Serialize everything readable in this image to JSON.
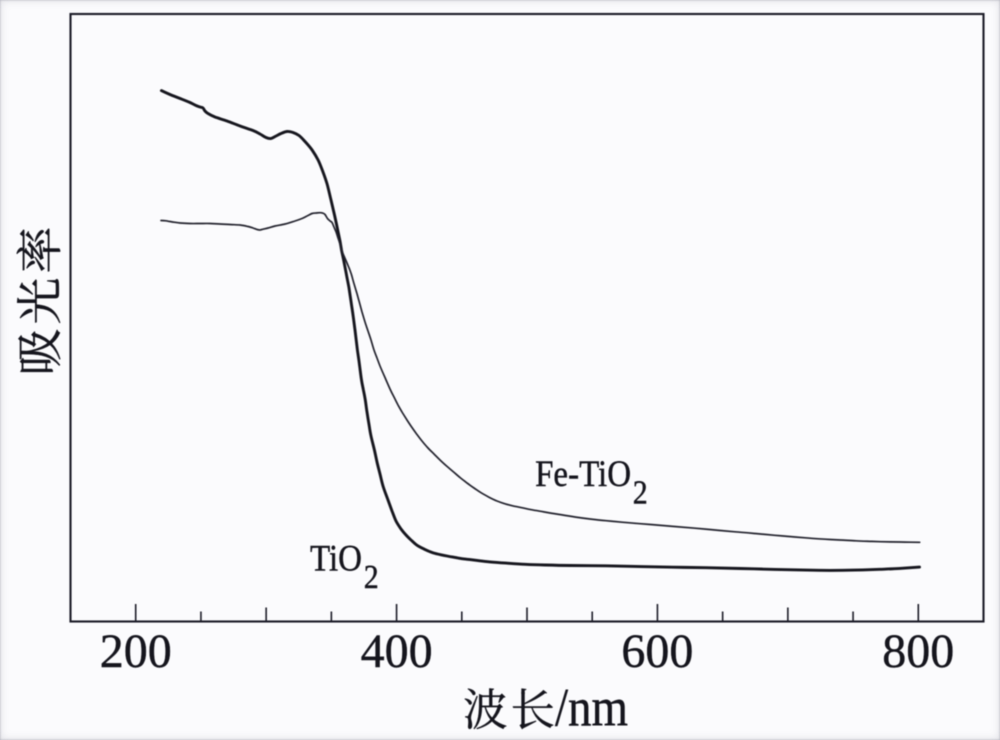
{
  "page": {
    "background": "#fbfbfd",
    "ink_color": "#15151d",
    "frame_color": "#1b1b27"
  },
  "chart_data": {
    "type": "line",
    "title": "",
    "xlabel": "波长/nm",
    "ylabel": "吸光率",
    "xlim": [
      150,
      850
    ],
    "ylim": [
      0,
      1
    ],
    "grid": false,
    "legend_position": "none",
    "x_ticks": [
      {
        "value": 200,
        "label": "200",
        "tier": "labeled"
      },
      {
        "value": 250,
        "label": "",
        "tier": "minor"
      },
      {
        "value": 300,
        "label": "",
        "tier": "major"
      },
      {
        "value": 350,
        "label": "",
        "tier": "minor"
      },
      {
        "value": 400,
        "label": "400",
        "tier": "labeled"
      },
      {
        "value": 450,
        "label": "",
        "tier": "minor"
      },
      {
        "value": 500,
        "label": "",
        "tier": "major"
      },
      {
        "value": 550,
        "label": "",
        "tier": "minor"
      },
      {
        "value": 600,
        "label": "600",
        "tier": "labeled"
      },
      {
        "value": 650,
        "label": "",
        "tier": "minor"
      },
      {
        "value": 700,
        "label": "",
        "tier": "major"
      },
      {
        "value": 750,
        "label": "",
        "tier": "minor"
      },
      {
        "value": 800,
        "label": "800",
        "tier": "labeled"
      }
    ],
    "series": [
      {
        "name": "TiO2",
        "label_main": "TiO",
        "label_sub": "2",
        "color": "#16161e",
        "stroke_width": 2.9,
        "label_anchor": {
          "x": 333.6,
          "y": 0.084
        },
        "points": [
          [
            219.7,
            0.8739
          ],
          [
            226.3,
            0.8675
          ],
          [
            234.0,
            0.8609
          ],
          [
            241.6,
            0.8543
          ],
          [
            246.2,
            0.8494
          ],
          [
            249.3,
            0.8469
          ],
          [
            251.6,
            0.8453
          ],
          [
            253.1,
            0.8403
          ],
          [
            255.4,
            0.8362
          ],
          [
            260.8,
            0.8305
          ],
          [
            270.0,
            0.8239
          ],
          [
            280.0,
            0.8156
          ],
          [
            289.9,
            0.8082
          ],
          [
            295.3,
            0.8025
          ],
          [
            299.9,
            0.7967
          ],
          [
            303.7,
            0.7951
          ],
          [
            307.6,
            0.7992
          ],
          [
            311.4,
            0.8033
          ],
          [
            316.0,
            0.8066
          ],
          [
            320.6,
            0.8049
          ],
          [
            325.2,
            0.8
          ],
          [
            329.8,
            0.7901
          ],
          [
            335.2,
            0.7761
          ],
          [
            339.8,
            0.7597
          ],
          [
            343.6,
            0.7399
          ],
          [
            346.7,
            0.7202
          ],
          [
            349.7,
            0.6938
          ],
          [
            352.4,
            0.6691
          ],
          [
            354.7,
            0.6461
          ],
          [
            356.6,
            0.6263
          ],
          [
            357.8,
            0.6115
          ],
          [
            359.7,
            0.5918
          ],
          [
            361.6,
            0.5704
          ],
          [
            363.5,
            0.549
          ],
          [
            365.1,
            0.5259
          ],
          [
            366.6,
            0.5045
          ],
          [
            368.1,
            0.4798
          ],
          [
            370.0,
            0.4469
          ],
          [
            371.6,
            0.4222
          ],
          [
            373.1,
            0.3975
          ],
          [
            374.6,
            0.3811
          ],
          [
            376.0,
            0.3646
          ],
          [
            377.3,
            0.3449
          ],
          [
            378.9,
            0.3235
          ],
          [
            380.4,
            0.3053
          ],
          [
            383.0,
            0.2823
          ],
          [
            385.0,
            0.2626
          ],
          [
            387.3,
            0.2428
          ],
          [
            389.6,
            0.223
          ],
          [
            393.4,
            0.2
          ],
          [
            396.5,
            0.1819
          ],
          [
            399.6,
            0.1654
          ],
          [
            403.4,
            0.1523
          ],
          [
            407.2,
            0.1424
          ],
          [
            411.1,
            0.1342
          ],
          [
            414.9,
            0.1267
          ],
          [
            418.0,
            0.1226
          ],
          [
            421.0,
            0.1193
          ],
          [
            424.9,
            0.1156
          ],
          [
            429.5,
            0.1121
          ],
          [
            434.1,
            0.1098
          ],
          [
            438.7,
            0.1078
          ],
          [
            443.3,
            0.106
          ],
          [
            447.1,
            0.1045
          ],
          [
            451.7,
            0.103
          ],
          [
            456.3,
            0.1019
          ],
          [
            462.4,
            0.1002
          ],
          [
            471.6,
            0.0981
          ],
          [
            483.9,
            0.0961
          ],
          [
            498.5,
            0.0942
          ],
          [
            513.8,
            0.093
          ],
          [
            533.0,
            0.0922
          ],
          [
            560.6,
            0.0917
          ],
          [
            586.6,
            0.0904
          ],
          [
            611.9,
            0.0894
          ],
          [
            637.2,
            0.0886
          ],
          [
            663.3,
            0.0872
          ],
          [
            690.1,
            0.0858
          ],
          [
            713.9,
            0.0846
          ],
          [
            732.3,
            0.0841
          ],
          [
            751.5,
            0.0846
          ],
          [
            770.6,
            0.0859
          ],
          [
            786.0,
            0.0874
          ],
          [
            800.9,
            0.0895
          ]
        ]
      },
      {
        "name": "Fe-TiO2",
        "label_main": "Fe-TiO",
        "label_sub": "2",
        "color": "#22222d",
        "stroke_width": 1.7,
        "label_anchor": {
          "x": 506.2,
          "y": 0.223
        },
        "points": [
          [
            219.4,
            0.6601
          ],
          [
            223.2,
            0.6596
          ],
          [
            226.3,
            0.6584
          ],
          [
            230.1,
            0.6571
          ],
          [
            234.0,
            0.656
          ],
          [
            241.6,
            0.6551
          ],
          [
            249.3,
            0.6551
          ],
          [
            257.0,
            0.6551
          ],
          [
            264.6,
            0.6543
          ],
          [
            272.3,
            0.6535
          ],
          [
            280.0,
            0.6527
          ],
          [
            286.1,
            0.6502
          ],
          [
            289.9,
            0.6477
          ],
          [
            293.0,
            0.6453
          ],
          [
            295.3,
            0.6444
          ],
          [
            296.8,
            0.6453
          ],
          [
            301.4,
            0.6477
          ],
          [
            306.8,
            0.651
          ],
          [
            314.5,
            0.6543
          ],
          [
            322.1,
            0.6593
          ],
          [
            327.5,
            0.6634
          ],
          [
            332.1,
            0.6683
          ],
          [
            335.2,
            0.6716
          ],
          [
            338.2,
            0.6724
          ],
          [
            341.3,
            0.6729
          ],
          [
            343.6,
            0.6721
          ],
          [
            345.1,
            0.67
          ],
          [
            347.0,
            0.6635
          ],
          [
            349.0,
            0.6593
          ],
          [
            350.5,
            0.6568
          ],
          [
            352.0,
            0.6494
          ],
          [
            353.6,
            0.6412
          ],
          [
            355.1,
            0.6313
          ],
          [
            356.6,
            0.6214
          ],
          [
            357.8,
            0.6115
          ],
          [
            359.7,
            0.6016
          ],
          [
            362.0,
            0.5901
          ],
          [
            363.9,
            0.5802
          ],
          [
            365.5,
            0.5704
          ],
          [
            367.4,
            0.5556
          ],
          [
            369.7,
            0.5391
          ],
          [
            371.4,
            0.5259
          ],
          [
            373.5,
            0.5095
          ],
          [
            375.8,
            0.493
          ],
          [
            378.1,
            0.4782
          ],
          [
            380.4,
            0.4634
          ],
          [
            382.7,
            0.4469
          ],
          [
            385.0,
            0.4337
          ],
          [
            387.3,
            0.4206
          ],
          [
            391.1,
            0.4016
          ],
          [
            395.0,
            0.3827
          ],
          [
            398.0,
            0.3695
          ],
          [
            401.1,
            0.3564
          ],
          [
            404.2,
            0.3449
          ],
          [
            408.0,
            0.3317
          ],
          [
            411.8,
            0.3193
          ],
          [
            415.7,
            0.3078
          ],
          [
            419.5,
            0.2971
          ],
          [
            424.1,
            0.2856
          ],
          [
            428.7,
            0.2757
          ],
          [
            433.3,
            0.2658
          ],
          [
            437.9,
            0.2568
          ],
          [
            443.3,
            0.2469
          ],
          [
            448.6,
            0.237
          ],
          [
            454.0,
            0.228
          ],
          [
            459.4,
            0.2198
          ],
          [
            464.7,
            0.212
          ],
          [
            470.9,
            0.2046
          ],
          [
            477.0,
            0.1984
          ],
          [
            483.1,
            0.1937
          ],
          [
            489.3,
            0.1903
          ],
          [
            494.6,
            0.188
          ],
          [
            502.3,
            0.1845
          ],
          [
            510.0,
            0.1816
          ],
          [
            517.6,
            0.1786
          ],
          [
            526.8,
            0.1755
          ],
          [
            536.8,
            0.172
          ],
          [
            548.3,
            0.1687
          ],
          [
            560.6,
            0.1659
          ],
          [
            572.8,
            0.1635
          ],
          [
            586.6,
            0.161
          ],
          [
            600.4,
            0.1587
          ],
          [
            614.2,
            0.1562
          ],
          [
            628.8,
            0.1536
          ],
          [
            644.1,
            0.1506
          ],
          [
            659.5,
            0.1477
          ],
          [
            674.8,
            0.1449
          ],
          [
            690.1,
            0.1419
          ],
          [
            705.5,
            0.1391
          ],
          [
            717.0,
            0.1371
          ],
          [
            728.5,
            0.1355
          ],
          [
            740.0,
            0.1342
          ],
          [
            752.2,
            0.1328
          ],
          [
            764.5,
            0.1319
          ],
          [
            778.3,
            0.131
          ],
          [
            789.8,
            0.1307
          ],
          [
            801.1,
            0.1304
          ]
        ]
      }
    ]
  }
}
